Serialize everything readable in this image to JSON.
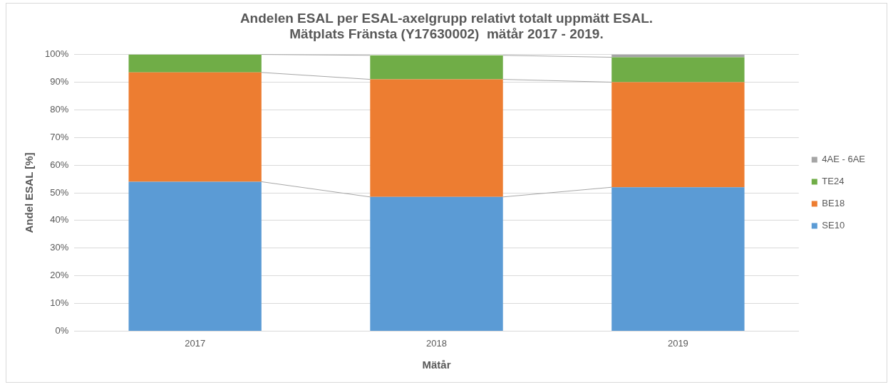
{
  "chart_data": {
    "type": "bar",
    "stacked": true,
    "title": [
      "Andelen ESAL per ESAL-axelgrupp relativt totalt uppmätt ESAL.",
      "Mätplats Fränsta (Y17630002)  mätår 2017 - 2019."
    ],
    "xlabel": "Mätår",
    "ylabel": "Andel ESAL [%]",
    "categories": [
      "2017",
      "2018",
      "2019"
    ],
    "series": [
      {
        "name": "SE10",
        "color": "#5b9bd5",
        "values": [
          54,
          48.5,
          52
        ]
      },
      {
        "name": "BE18",
        "color": "#ed7d31",
        "values": [
          39.5,
          42.5,
          38
        ]
      },
      {
        "name": "TE24",
        "color": "#70ad47",
        "values": [
          6.5,
          8.7,
          9
        ]
      },
      {
        "name": "4AE - 6AE",
        "color": "#a5a5a5",
        "values": [
          0,
          null,
          1
        ]
      }
    ],
    "ylim": [
      0,
      100
    ],
    "yticks": [
      {
        "value": 0,
        "label": "0%"
      },
      {
        "value": 10,
        "label": "10%"
      },
      {
        "value": 20,
        "label": "20%"
      },
      {
        "value": 30,
        "label": "30%"
      },
      {
        "value": 40,
        "label": "40%"
      },
      {
        "value": 50,
        "label": "50%"
      },
      {
        "value": 60,
        "label": "60%"
      },
      {
        "value": 70,
        "label": "70%"
      },
      {
        "value": 80,
        "label": "80%"
      },
      {
        "value": 90,
        "label": "90%"
      },
      {
        "value": 100,
        "label": "100%"
      }
    ],
    "grid": "y",
    "legend": "right"
  }
}
